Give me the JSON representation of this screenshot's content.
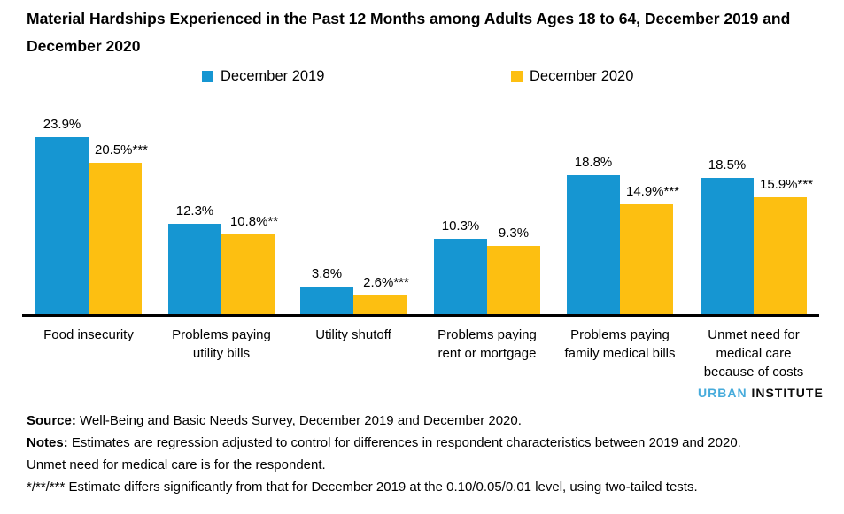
{
  "title": "Material Hardships Experienced in the Past 12 Months among Adults Ages 18 to 64, December 2019 and December 2020",
  "legend": {
    "items": [
      {
        "label": "December 2019",
        "color": "#1696d2"
      },
      {
        "label": "December 2020",
        "color": "#fdbf11"
      }
    ]
  },
  "chart_data": {
    "type": "bar",
    "title": "Material Hardships Experienced in the Past 12 Months among Adults Ages 18 to 64, December 2019 and December 2020",
    "categories": [
      "Food insecurity",
      "Problems paying utility bills",
      "Utility shutoff",
      "Problems paying rent or mortgage",
      "Problems paying family medical bills",
      "Unmet need for medical care because of costs"
    ],
    "series": [
      {
        "name": "December 2019",
        "color": "#1696d2",
        "values": [
          23.9,
          12.3,
          3.8,
          10.3,
          18.8,
          18.5
        ],
        "value_labels": [
          "23.9%",
          "12.3%",
          "3.8%",
          "10.3%",
          "18.8%",
          "18.5%"
        ]
      },
      {
        "name": "December 2020",
        "color": "#fdbf11",
        "values": [
          20.5,
          10.8,
          2.6,
          9.3,
          14.9,
          15.9
        ],
        "value_labels": [
          "20.5%***",
          "10.8%**",
          "2.6%***",
          "9.3%",
          "14.9%***",
          "15.9%***"
        ]
      }
    ],
    "xlabel": "",
    "ylabel": "",
    "ylim": [
      0,
      29.3
    ],
    "grid": false,
    "y_axis_visible": false,
    "legend_position": "top",
    "value_suffix": "%"
  },
  "logo": {
    "part1": "URBAN",
    "part2": "INSTITUTE",
    "part1_color": "#46abdb",
    "part2_color": "#0d0d0d"
  },
  "footer": {
    "lines": [
      {
        "bold": "Source:",
        "text": " Well-Being and Basic Needs Survey, December 2019 and December 2020."
      },
      {
        "bold": "Notes:",
        "text": " Estimates are regression adjusted to control for differences in respondent characteristics between 2019 and 2020."
      },
      {
        "bold": "",
        "text": "Unmet need for medical care is for the respondent."
      },
      {
        "bold": "",
        "text": "*/**/*** Estimate differs significantly from that for December 2019 at the 0.10/0.05/0.01 level, using two-tailed tests."
      }
    ]
  },
  "colors": {
    "axis": "#000000",
    "text": "#000000",
    "background": "#ffffff"
  }
}
